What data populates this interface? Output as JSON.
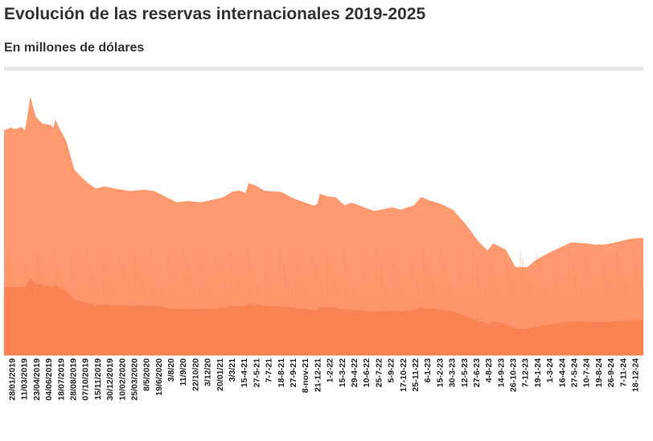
{
  "header": {
    "title": "Evolución de las reservas internacionales 2019-2025",
    "subtitle": "En millones de dólares"
  },
  "colors": {
    "fill": "#ff9a70",
    "dark": "#f4753f",
    "rule": "#e5e5e5"
  },
  "chart_data": {
    "type": "area",
    "title": "Evolución de las reservas internacionales 2019-2025",
    "subtitle": "En millones de dólares",
    "xlabel": "",
    "ylabel": "",
    "grid": false,
    "legend": "none",
    "note": "No y-axis is printed; values are relative heights on a 0-100 index estimated from the figure.",
    "ylim": [
      0,
      100
    ],
    "x_ticks": [
      "28/01/2019",
      "11/03/2019",
      "23/04/2019",
      "04/06/2019",
      "18/07/2019",
      "28/08/2019",
      "07/10/2019",
      "15/11/2019",
      "30/12/2019",
      "10/02/2020",
      "25/03/2020",
      "8/5/2020",
      "19/6/2020",
      "3/8/20",
      "11/9/20",
      "22/10/20",
      "3/12/20",
      "20/01/21",
      "3/3/21",
      "15-4-21",
      "27-5-21",
      "7-7-21",
      "18-8-21",
      "27-9-21",
      "8-nov-21",
      "21-12-21",
      "1-2-22",
      "15-3-22",
      "29-4-22",
      "10-6-22",
      "25-7-22",
      "5-9-22",
      "17-10-22",
      "25-11-22",
      "6-1-23",
      "15-2-23",
      "30-3-23",
      "12-5-23",
      "27-6-23",
      "4-8-23",
      "14-9-23",
      "26-10-23",
      "7-12-23",
      "19-1-24",
      "1-3-24",
      "16-4-24",
      "27-5-24",
      "10-7-24",
      "19-8-24",
      "26-9-24",
      "7-11-24",
      "18-12-24"
    ],
    "series": [
      {
        "values": [
          [
            0,
            83
          ],
          [
            0.8,
            84
          ],
          [
            1.4,
            83.5
          ],
          [
            2.2,
            84.2
          ],
          [
            2.6,
            83
          ],
          [
            2.8,
            86
          ],
          [
            3.3,
            95.5
          ],
          [
            3.6,
            92
          ],
          [
            4.0,
            88
          ],
          [
            4.8,
            85.5
          ],
          [
            5.8,
            85
          ],
          [
            6.2,
            84
          ],
          [
            6.4,
            87
          ],
          [
            6.9,
            84
          ],
          [
            7.8,
            79
          ],
          [
            8.8,
            68.5
          ],
          [
            9.6,
            66
          ],
          [
            10.5,
            63.5
          ],
          [
            11.5,
            61.5
          ],
          [
            12.5,
            62.3
          ],
          [
            14.2,
            61.3
          ],
          [
            15.8,
            60.6
          ],
          [
            17.5,
            61.1
          ],
          [
            18.8,
            60.6
          ],
          [
            20.2,
            58.5
          ],
          [
            21.6,
            56.4
          ],
          [
            23,
            56.9
          ],
          [
            24.6,
            56.4
          ],
          [
            26.2,
            57.4
          ],
          [
            27.5,
            58.4
          ],
          [
            28.5,
            60.3
          ],
          [
            29.5,
            60.8
          ],
          [
            30.2,
            59.8
          ],
          [
            30.6,
            63.5
          ],
          [
            31.6,
            62.5
          ],
          [
            32.6,
            60.7
          ],
          [
            34.6,
            60.3
          ],
          [
            36.3,
            57.8
          ],
          [
            37.7,
            56.3
          ],
          [
            38.8,
            55.2
          ],
          [
            39.2,
            55.8
          ],
          [
            39.5,
            59.6
          ],
          [
            40.5,
            58.6
          ],
          [
            41.5,
            58.3
          ],
          [
            42.6,
            55.3
          ],
          [
            43.5,
            56.3
          ],
          [
            44.8,
            54.9
          ],
          [
            46.3,
            53.2
          ],
          [
            47.3,
            53.8
          ],
          [
            48.6,
            54.6
          ],
          [
            49.6,
            53.7
          ],
          [
            51.3,
            55.3
          ],
          [
            52.2,
            58.4
          ],
          [
            53.3,
            57.1
          ],
          [
            54.7,
            55.8
          ],
          [
            56.2,
            53.6
          ],
          [
            57.7,
            48.6
          ],
          [
            59.3,
            42.2
          ],
          [
            60.5,
            38.6
          ],
          [
            61.2,
            41.3
          ],
          [
            62.8,
            38.9
          ],
          [
            64,
            32.5
          ],
          [
            65.5,
            32.5
          ],
          [
            66.5,
            35
          ],
          [
            68,
            37.5
          ],
          [
            69.5,
            39.6
          ],
          [
            71,
            41.6
          ],
          [
            72.8,
            41.3
          ],
          [
            74,
            40.8
          ],
          [
            75.2,
            40.8
          ],
          [
            76.5,
            41.6
          ],
          [
            78,
            42.7
          ],
          [
            79,
            43.2
          ],
          [
            80,
            43.2
          ]
        ]
      }
    ]
  }
}
